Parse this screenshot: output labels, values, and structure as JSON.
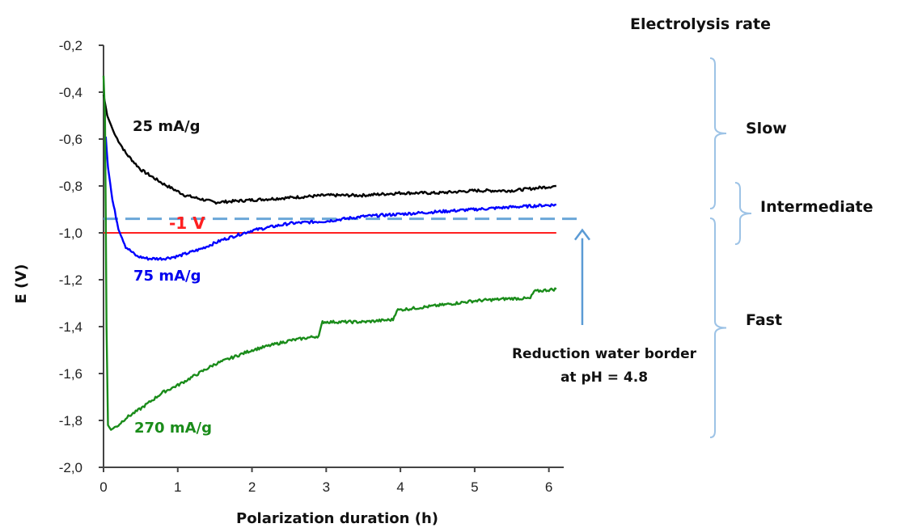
{
  "chart_data": {
    "type": "line",
    "title": "Electrolysis rate",
    "xlabel": "Polarization duration (h)",
    "ylabel": "E (V)",
    "xlim": [
      0,
      6.2
    ],
    "ylim": [
      -2.0,
      -0.2
    ],
    "xticks": [
      "0",
      "1",
      "2",
      "3",
      "4",
      "5",
      "6"
    ],
    "yticks": [
      "-0,2",
      "-0,4",
      "-0,6",
      "-0,8",
      "-1,0",
      "-1,2",
      "-1,4",
      "-1,6",
      "-1,8",
      "-2,0"
    ],
    "series": [
      {
        "name": "25 mA/g",
        "color": "#000000",
        "x": [
          0,
          0.05,
          0.15,
          0.3,
          0.5,
          0.8,
          1.1,
          1.5,
          2.0,
          2.5,
          3.0,
          3.5,
          4.0,
          4.5,
          5.0,
          5.5,
          6.1
        ],
        "y": [
          -0.41,
          -0.5,
          -0.58,
          -0.66,
          -0.73,
          -0.79,
          -0.84,
          -0.87,
          -0.86,
          -0.85,
          -0.84,
          -0.84,
          -0.83,
          -0.83,
          -0.82,
          -0.82,
          -0.8
        ]
      },
      {
        "name": "75 mA/g",
        "color": "#0000ff",
        "x": [
          0.03,
          0.06,
          0.12,
          0.2,
          0.3,
          0.45,
          0.6,
          0.8,
          1.0,
          1.3,
          1.6,
          2.0,
          2.5,
          3.0,
          3.5,
          4.0,
          4.5,
          5.0,
          5.5,
          6.1
        ],
        "y": [
          -0.59,
          -0.72,
          -0.86,
          -0.98,
          -1.06,
          -1.1,
          -1.11,
          -1.11,
          -1.1,
          -1.07,
          -1.03,
          -0.99,
          -0.96,
          -0.95,
          -0.93,
          -0.92,
          -0.91,
          -0.9,
          -0.89,
          -0.88
        ]
      },
      {
        "name": "270 mA/g",
        "color": "#1a8c1a",
        "x": [
          0.0,
          0.02,
          0.04,
          0.06,
          0.1,
          0.2,
          0.3,
          0.5,
          0.8,
          1.0,
          1.5,
          2.0,
          2.5,
          2.9,
          2.95,
          3.5,
          3.9,
          3.95,
          4.5,
          5.0,
          5.5,
          5.75,
          5.8,
          6.1
        ],
        "y": [
          -0.33,
          -0.5,
          -1.4,
          -1.82,
          -1.84,
          -1.82,
          -1.79,
          -1.75,
          -1.68,
          -1.65,
          -1.56,
          -1.5,
          -1.46,
          -1.44,
          -1.38,
          -1.38,
          -1.37,
          -1.33,
          -1.31,
          -1.29,
          -1.28,
          -1.28,
          -1.25,
          -1.24
        ]
      }
    ],
    "reference_lines": [
      {
        "label": "-1 V",
        "y": -1.0,
        "x_end": 6.1,
        "color": "#ff2020",
        "style": "solid"
      },
      {
        "label": "",
        "y": -0.94,
        "x_end": 6.45,
        "color": "#6aa6d8",
        "style": "dashed"
      }
    ],
    "annotations": {
      "water_border": [
        "Reduction water border",
        "at pH = 4.8"
      ],
      "rates": [
        "Slow",
        "Intermediate",
        "Fast"
      ]
    }
  }
}
